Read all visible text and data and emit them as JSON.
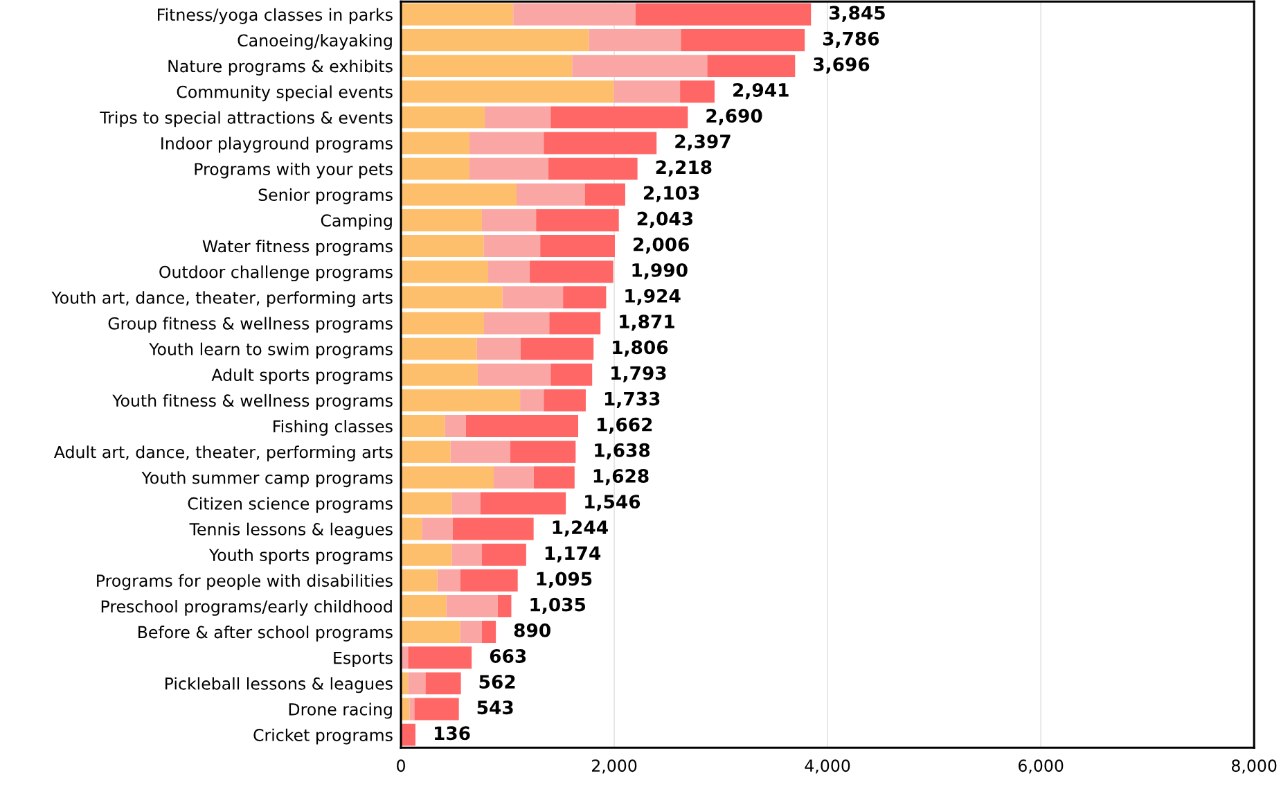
{
  "chart_data": {
    "type": "bar",
    "orientation": "horizontal",
    "stacked": true,
    "categories": [
      "Fitness/yoga classes in parks",
      "Canoeing/kayaking",
      "Nature programs & exhibits",
      "Community special events",
      "Trips to special attractions & events",
      "Indoor playground programs",
      "Programs with your pets",
      "Senior programs",
      "Camping",
      "Water fitness programs",
      "Outdoor challenge programs",
      "Youth art, dance, theater, performing arts",
      "Group fitness & wellness programs",
      "Youth learn to swim programs",
      "Adult sports programs",
      "Youth fitness & wellness programs",
      "Fishing classes",
      "Adult art, dance, theater, performing arts",
      "Youth summer camp programs",
      "Citizen science programs",
      "Tennis lessons & leagues",
      "Youth sports programs",
      "Programs for people with disabilities",
      "Preschool programs/early childhood",
      "Before & after school programs",
      "Esports",
      "Pickleball lessons & leagues",
      "Drone racing",
      "Cricket programs"
    ],
    "series": [
      {
        "color": "#fdbf6b",
        "values": [
          1053,
          1763,
          1605,
          1997,
          785,
          643,
          643,
          1084,
          759,
          777,
          818,
          952,
          779,
          712,
          720,
          1117,
          413,
          465,
          870,
          477,
          196,
          477,
          341,
          426,
          555,
          0,
          67,
          80,
          0
        ]
      },
      {
        "color": "#f9a6a4",
        "values": [
          1146,
          862,
          1267,
          620,
          619,
          696,
          740,
          640,
          508,
          529,
          390,
          568,
          612,
          411,
          684,
          222,
          196,
          560,
          376,
          269,
          289,
          282,
          216,
          482,
          204,
          67,
          163,
          46,
          0
        ]
      },
      {
        "color": "#ff6666",
        "values": [
          1646,
          1161,
          824,
          324,
          1286,
          1058,
          835,
          379,
          776,
          700,
          782,
          404,
          480,
          683,
          389,
          394,
          1053,
          613,
          382,
          800,
          759,
          415,
          538,
          127,
          131,
          596,
          332,
          417,
          136
        ]
      }
    ],
    "totals": [
      "3,845",
      "3,786",
      "3,696",
      "2,941",
      "2,690",
      "2,397",
      "2,218",
      "2,103",
      "2,043",
      "2,006",
      "1,990",
      "1,924",
      "1,871",
      "1,806",
      "1,793",
      "1,733",
      "1,662",
      "1,638",
      "1,628",
      "1,546",
      "1,244",
      "1,174",
      "1,095",
      "1,035",
      "890",
      "663",
      "562",
      "543",
      "136"
    ],
    "xlim": [
      0,
      8000
    ],
    "xticks": [
      0,
      {
        "value": 2000,
        "label": "2,000"
      },
      {
        "value": 4000,
        "label": "4,000"
      },
      {
        "value": 6000,
        "label": "6,000"
      },
      {
        "value": 8000,
        "label": "8,000"
      }
    ],
    "grid": "x",
    "legend": false
  }
}
